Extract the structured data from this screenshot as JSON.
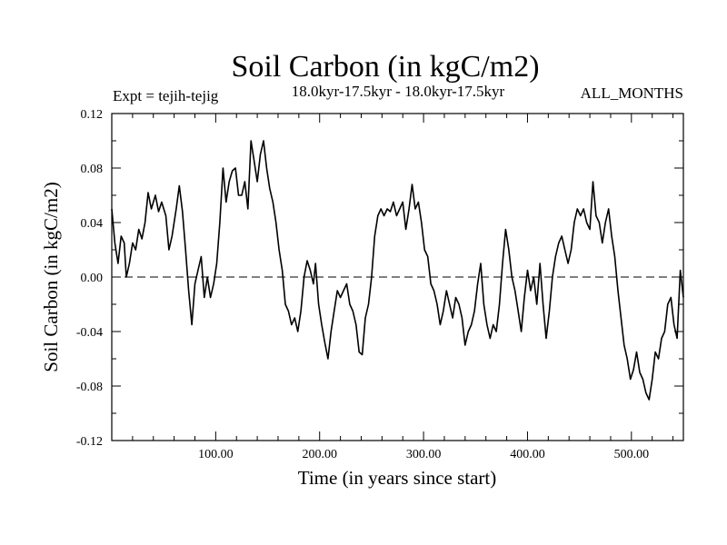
{
  "chart_data": {
    "type": "line",
    "title": "Soil Carbon (in kgC/m2)",
    "subtitle": "18.0kyr-17.5kyr - 18.0kyr-17.5kyr",
    "expt_label": "Expt = tejih-tejig",
    "months_label": "ALL_MONTHS",
    "xlabel": "Time (in years since start)",
    "ylabel": "Soil Carbon (in kgC/m2)",
    "xlim": [
      0,
      550
    ],
    "ylim": [
      -0.12,
      0.12
    ],
    "x_ticks": [
      100,
      200,
      300,
      400,
      500
    ],
    "x_tick_labels": [
      "100.00",
      "200.00",
      "300.00",
      "400.00",
      "500.00"
    ],
    "y_ticks": [
      0.12,
      0.08,
      0.04,
      0.0,
      -0.04,
      -0.08,
      -0.12
    ],
    "y_tick_labels": [
      "0.12",
      "0.08",
      "0.04",
      "0.00",
      "-0.04",
      "-0.08",
      "-0.12"
    ],
    "reference_line": 0.0,
    "series": [
      {
        "name": "Soil Carbon",
        "color": "#000000",
        "points": [
          [
            0,
            0.05
          ],
          [
            3,
            0.025
          ],
          [
            6,
            0.01
          ],
          [
            9,
            0.03
          ],
          [
            12,
            0.025
          ],
          [
            14,
            0.0
          ],
          [
            17,
            0.01
          ],
          [
            20,
            0.025
          ],
          [
            23,
            0.02
          ],
          [
            26,
            0.035
          ],
          [
            29,
            0.028
          ],
          [
            32,
            0.04
          ],
          [
            35,
            0.062
          ],
          [
            38,
            0.05
          ],
          [
            42,
            0.06
          ],
          [
            45,
            0.048
          ],
          [
            48,
            0.055
          ],
          [
            52,
            0.045
          ],
          [
            55,
            0.02
          ],
          [
            58,
            0.03
          ],
          [
            62,
            0.05
          ],
          [
            65,
            0.067
          ],
          [
            68,
            0.048
          ],
          [
            71,
            0.02
          ],
          [
            74,
            -0.01
          ],
          [
            77,
            -0.035
          ],
          [
            80,
            -0.005
          ],
          [
            83,
            0.005
          ],
          [
            86,
            0.015
          ],
          [
            89,
            -0.015
          ],
          [
            92,
            0.0
          ],
          [
            95,
            -0.015
          ],
          [
            98,
            -0.005
          ],
          [
            101,
            0.01
          ],
          [
            104,
            0.04
          ],
          [
            107,
            0.08
          ],
          [
            110,
            0.055
          ],
          [
            113,
            0.07
          ],
          [
            116,
            0.078
          ],
          [
            119,
            0.08
          ],
          [
            122,
            0.06
          ],
          [
            125,
            0.06
          ],
          [
            128,
            0.07
          ],
          [
            131,
            0.05
          ],
          [
            134,
            0.1
          ],
          [
            137,
            0.085
          ],
          [
            140,
            0.07
          ],
          [
            143,
            0.09
          ],
          [
            146,
            0.1
          ],
          [
            149,
            0.08
          ],
          [
            152,
            0.065
          ],
          [
            155,
            0.055
          ],
          [
            158,
            0.04
          ],
          [
            161,
            0.02
          ],
          [
            164,
            0.005
          ],
          [
            167,
            -0.02
          ],
          [
            170,
            -0.025
          ],
          [
            173,
            -0.035
          ],
          [
            176,
            -0.03
          ],
          [
            179,
            -0.04
          ],
          [
            182,
            -0.025
          ],
          [
            185,
            0.0
          ],
          [
            188,
            0.012
          ],
          [
            191,
            0.005
          ],
          [
            194,
            -0.005
          ],
          [
            196,
            0.01
          ],
          [
            199,
            -0.02
          ],
          [
            202,
            -0.035
          ],
          [
            205,
            -0.048
          ],
          [
            208,
            -0.06
          ],
          [
            211,
            -0.04
          ],
          [
            214,
            -0.025
          ],
          [
            217,
            -0.01
          ],
          [
            220,
            -0.015
          ],
          [
            223,
            -0.01
          ],
          [
            226,
            -0.005
          ],
          [
            229,
            -0.02
          ],
          [
            232,
            -0.025
          ],
          [
            235,
            -0.035
          ],
          [
            238,
            -0.055
          ],
          [
            241,
            -0.057
          ],
          [
            244,
            -0.03
          ],
          [
            247,
            -0.02
          ],
          [
            250,
            0.0
          ],
          [
            253,
            0.03
          ],
          [
            256,
            0.045
          ],
          [
            259,
            0.05
          ],
          [
            262,
            0.045
          ],
          [
            265,
            0.05
          ],
          [
            268,
            0.048
          ],
          [
            271,
            0.055
          ],
          [
            274,
            0.045
          ],
          [
            277,
            0.05
          ],
          [
            280,
            0.055
          ],
          [
            283,
            0.035
          ],
          [
            286,
            0.05
          ],
          [
            289,
            0.068
          ],
          [
            292,
            0.05
          ],
          [
            295,
            0.055
          ],
          [
            298,
            0.04
          ],
          [
            301,
            0.02
          ],
          [
            304,
            0.015
          ],
          [
            307,
            -0.005
          ],
          [
            310,
            -0.01
          ],
          [
            313,
            -0.02
          ],
          [
            316,
            -0.035
          ],
          [
            319,
            -0.025
          ],
          [
            322,
            -0.01
          ],
          [
            325,
            -0.02
          ],
          [
            328,
            -0.03
          ],
          [
            331,
            -0.015
          ],
          [
            334,
            -0.02
          ],
          [
            337,
            -0.03
          ],
          [
            340,
            -0.05
          ],
          [
            343,
            -0.04
          ],
          [
            346,
            -0.035
          ],
          [
            349,
            -0.025
          ],
          [
            352,
            -0.005
          ],
          [
            355,
            0.01
          ],
          [
            358,
            -0.02
          ],
          [
            361,
            -0.035
          ],
          [
            364,
            -0.045
          ],
          [
            367,
            -0.035
          ],
          [
            370,
            -0.04
          ],
          [
            373,
            -0.02
          ],
          [
            376,
            0.01
          ],
          [
            379,
            0.035
          ],
          [
            382,
            0.02
          ],
          [
            385,
            0.0
          ],
          [
            388,
            -0.01
          ],
          [
            391,
            -0.025
          ],
          [
            394,
            -0.04
          ],
          [
            397,
            -0.015
          ],
          [
            400,
            0.005
          ],
          [
            403,
            -0.01
          ],
          [
            406,
            0.0
          ],
          [
            409,
            -0.02
          ],
          [
            412,
            0.01
          ],
          [
            415,
            -0.02
          ],
          [
            418,
            -0.045
          ],
          [
            421,
            -0.025
          ],
          [
            424,
            0.0
          ],
          [
            427,
            0.015
          ],
          [
            430,
            0.025
          ],
          [
            433,
            0.03
          ],
          [
            436,
            0.02
          ],
          [
            439,
            0.01
          ],
          [
            442,
            0.02
          ],
          [
            445,
            0.04
          ],
          [
            448,
            0.05
          ],
          [
            451,
            0.045
          ],
          [
            454,
            0.05
          ],
          [
            457,
            0.04
          ],
          [
            460,
            0.035
          ],
          [
            463,
            0.07
          ],
          [
            466,
            0.045
          ],
          [
            469,
            0.04
          ],
          [
            472,
            0.025
          ],
          [
            475,
            0.04
          ],
          [
            478,
            0.05
          ],
          [
            481,
            0.03
          ],
          [
            484,
            0.015
          ],
          [
            487,
            -0.01
          ],
          [
            490,
            -0.03
          ],
          [
            493,
            -0.05
          ],
          [
            496,
            -0.06
          ],
          [
            499,
            -0.075
          ],
          [
            502,
            -0.068
          ],
          [
            505,
            -0.055
          ],
          [
            508,
            -0.07
          ],
          [
            511,
            -0.075
          ],
          [
            514,
            -0.085
          ],
          [
            517,
            -0.09
          ],
          [
            520,
            -0.075
          ],
          [
            523,
            -0.055
          ],
          [
            526,
            -0.06
          ],
          [
            529,
            -0.045
          ],
          [
            532,
            -0.04
          ],
          [
            535,
            -0.02
          ],
          [
            538,
            -0.015
          ],
          [
            541,
            -0.035
          ],
          [
            544,
            -0.045
          ],
          [
            547,
            0.005
          ],
          [
            550,
            -0.015
          ]
        ]
      }
    ]
  }
}
